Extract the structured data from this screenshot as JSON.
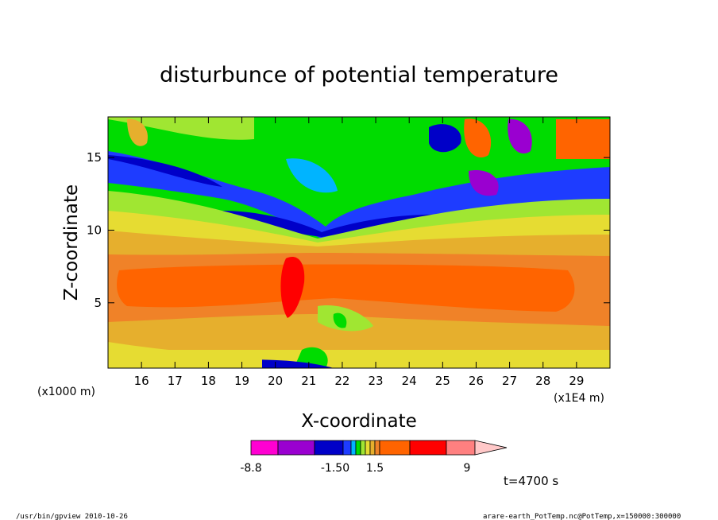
{
  "chart_data": {
    "type": "heatmap",
    "title": "disturbunce of potential temperature",
    "xlabel": "X-coordinate",
    "ylabel": "Z-coordinate",
    "x_units": "(x1E4 m)",
    "y_units": "(x1000 m)",
    "x_ticks": [
      16,
      17,
      18,
      19,
      20,
      21,
      22,
      23,
      24,
      25,
      26,
      27,
      28,
      29
    ],
    "y_ticks": [
      5,
      10,
      15
    ],
    "xlim": [
      15,
      30
    ],
    "ylim": [
      0.5,
      17.8
    ],
    "colorbar": {
      "colors": [
        "#ff00d2",
        "#9a00d0",
        "#0000c8",
        "#1e3cff",
        "#00b4ff",
        "#00dc00",
        "#a0e632",
        "#e6dc32",
        "#e6af2d",
        "#f08228",
        "#ff6400",
        "#ff0000",
        "#ff8080",
        "#ffc8c8"
      ],
      "tick_labels": [
        "-8.8",
        "-1.50",
        "1.5",
        "9"
      ]
    },
    "annotation": "t=4700 s",
    "footer_left": "/usr/bin/gpview   2010-10-26",
    "footer_right": "arare-earth_PotTemp.nc@PotTemp,x=150000:300000"
  }
}
